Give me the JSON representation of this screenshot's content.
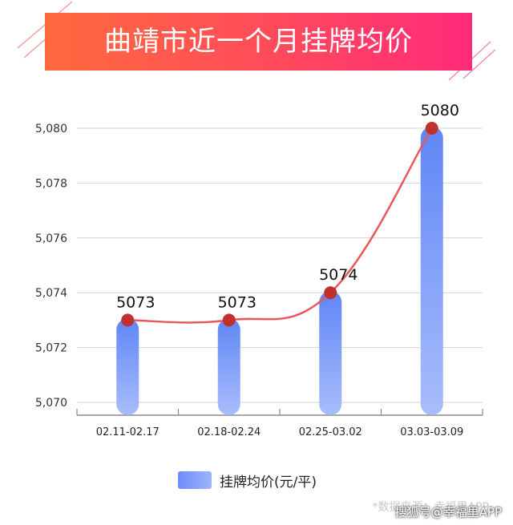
{
  "header": {
    "title": "曲靖市近一个月挂牌均价"
  },
  "chart_data": {
    "type": "bar",
    "title": "曲靖市近一个月挂牌均价",
    "categories": [
      "02.11-02.17",
      "02.18-02.24",
      "02.25-03.02",
      "03.03-03.09"
    ],
    "series": [
      {
        "name": "挂牌均价(元/平)",
        "values": [
          5073,
          5073,
          5074,
          5080
        ]
      }
    ],
    "overlay_line": true,
    "data_labels": [
      "5073",
      "5073",
      "5074",
      "5080"
    ],
    "y_ticks": [
      "5,070",
      "5,072",
      "5,074",
      "5,076",
      "5,078",
      "5,080"
    ],
    "ylim": [
      5070,
      5080
    ],
    "grid": true,
    "legend_position": "bottom",
    "colors": {
      "bar_top": "#5f86f6",
      "bar_bottom": "#a9bdfb",
      "line": "#e8585c",
      "marker": "#c0302c"
    }
  },
  "legend": {
    "label": "挂牌均价(元/平)"
  },
  "footer": {
    "source": "*数据来源：幸福里APP",
    "watermark": "搜狐号@幸福里APP"
  }
}
